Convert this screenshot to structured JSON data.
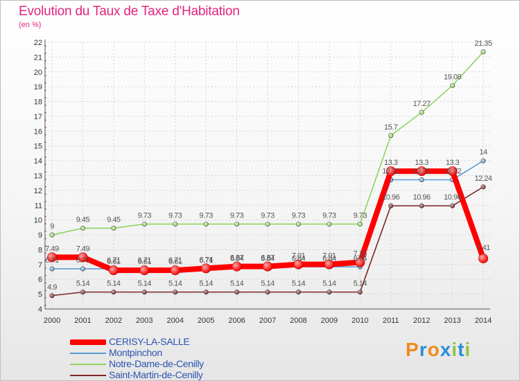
{
  "header": {
    "title": "Evolution du Taux de Taxe d'Habitation",
    "subtitle": "(en %)"
  },
  "logo": {
    "letters": [
      "P",
      "r",
      "o",
      "x",
      "i",
      "t",
      "i"
    ],
    "colors": [
      "#f08a1c",
      "#2a8fd6",
      "#f08a1c",
      "#2a8fd6",
      "#8cc63f",
      "#2a8fd6",
      "#8cc63f"
    ]
  },
  "chart_data": {
    "type": "line",
    "title": "Evolution du Taux de Taxe d'Habitation",
    "ylabel": "(en %)",
    "xlabel": "",
    "x": [
      "2000",
      "2001",
      "2002",
      "2003",
      "2004",
      "2005",
      "2006",
      "2007",
      "2008",
      "2009",
      "2010",
      "2011",
      "2012",
      "2013",
      "2014"
    ],
    "ylim": [
      4,
      22
    ],
    "yticks": [
      "4",
      "5",
      "6",
      "7",
      "8",
      "9",
      "10",
      "11",
      "12",
      "13",
      "14",
      "15",
      "16",
      "17",
      "18",
      "19",
      "20",
      "21",
      "22"
    ],
    "grid": true,
    "legend_position": "bottom-left",
    "series": [
      {
        "name": "CERISY-LA-SALLE",
        "color": "#ff0000",
        "values": [
          7.49,
          7.49,
          6.61,
          6.61,
          6.61,
          6.74,
          6.87,
          6.87,
          7.01,
          7.01,
          7.15,
          13.3,
          13.3,
          13.3,
          7.41
        ],
        "labels": [
          "7.49",
          "7.49",
          "6.61",
          "6.61",
          "6.61",
          "6.74",
          "6.87",
          "6.87",
          "7.01",
          "7.01",
          "7.15",
          "13.3",
          "13.3",
          "13.3",
          "7.41"
        ]
      },
      {
        "name": "Montpinchon",
        "color": "#5b9bd5",
        "values": [
          6.71,
          6.71,
          6.71,
          6.71,
          6.71,
          6.71,
          6.84,
          6.84,
          6.84,
          6.84,
          6.84,
          12.72,
          12.72,
          12.72,
          14
        ],
        "labels": [
          "6.71",
          "6.71",
          "6.71",
          "6.71",
          "6.71",
          "6.71",
          "6.84",
          "6.84",
          "6.84",
          "6.84",
          "6.84",
          "12.72",
          "12.72",
          "12.72",
          "14"
        ]
      },
      {
        "name": "Notre-Dame-de-Cenilly",
        "color": "#8fd460",
        "values": [
          9,
          9.45,
          9.45,
          9.73,
          9.73,
          9.73,
          9.73,
          9.73,
          9.73,
          9.73,
          9.73,
          15.7,
          17.27,
          19.08,
          21.35
        ],
        "labels": [
          "9",
          "9.45",
          "9.45",
          "9.73",
          "9.73",
          "9.73",
          "9.73",
          "9.73",
          "9.73",
          "9.73",
          "9.73",
          "15.7",
          "17.27",
          "19.08",
          "21.35"
        ]
      },
      {
        "name": "Saint-Martin-de-Cenilly",
        "color": "#7b2525",
        "values": [
          4.9,
          5.14,
          5.14,
          5.14,
          5.14,
          5.14,
          5.14,
          5.14,
          5.14,
          5.14,
          5.14,
          10.96,
          10.96,
          10.96,
          12.24
        ],
        "labels": [
          "4.9",
          "5.14",
          "5.14",
          "5.14",
          "5.14",
          "5.14",
          "5.14",
          "5.14",
          "5.14",
          "5.14",
          "5.14",
          "10.96",
          "10.96",
          "10.96",
          "12.24"
        ]
      }
    ]
  }
}
